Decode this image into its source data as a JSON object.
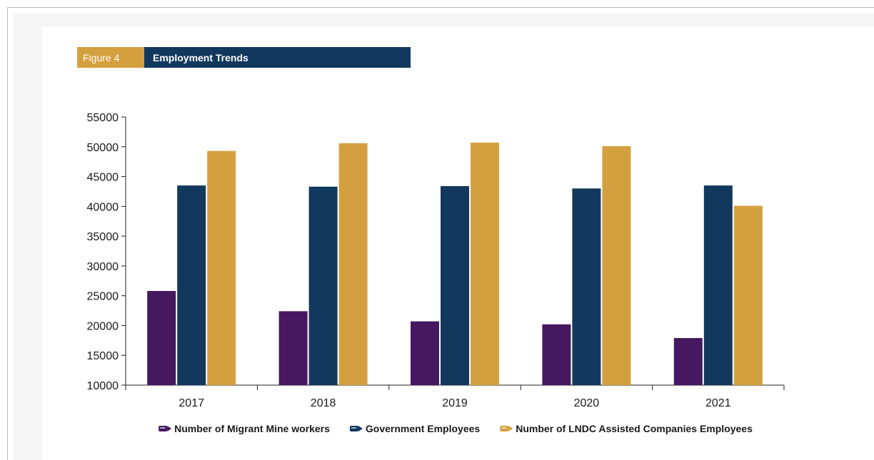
{
  "figure": {
    "number_label": "Figure 4",
    "title": "Employment Trends"
  },
  "colors": {
    "migrant": "#45185f",
    "government": "#12385e",
    "lndc": "#d4a03f",
    "figure_badge": "#d4a03f",
    "title_bar": "#12385e"
  },
  "chart_data": {
    "type": "bar",
    "title": "Employment Trends",
    "xlabel": "",
    "ylabel": "",
    "categories": [
      "2017",
      "2018",
      "2019",
      "2020",
      "2021"
    ],
    "ylim": [
      10000,
      55000
    ],
    "yticks": [
      10000,
      15000,
      20000,
      25000,
      30000,
      35000,
      40000,
      45000,
      50000,
      55000
    ],
    "grid": false,
    "legend_position": "bottom",
    "series": [
      {
        "name": "Number of Migrant Mine workers",
        "color": "#45185f",
        "values": [
          25800,
          22400,
          20700,
          20200,
          17900
        ]
      },
      {
        "name": "Government Employees",
        "color": "#12385e",
        "values": [
          43500,
          43300,
          43400,
          43000,
          43500
        ]
      },
      {
        "name": "Number of LNDC Assisted Companies Employees",
        "color": "#d4a03f",
        "values": [
          49300,
          50600,
          50700,
          50100,
          40100
        ]
      }
    ]
  }
}
